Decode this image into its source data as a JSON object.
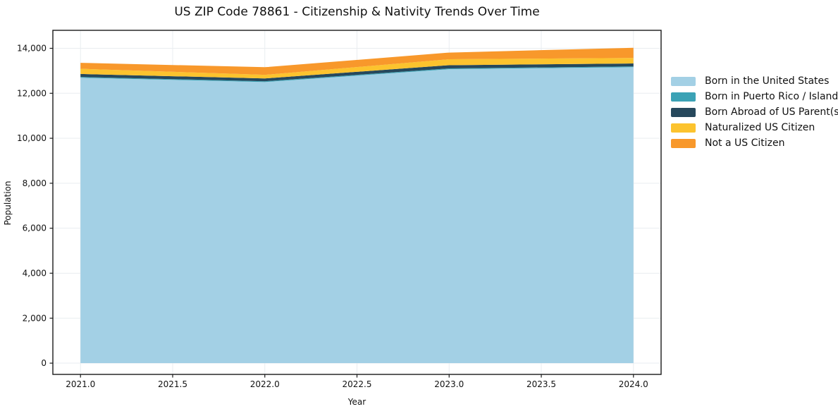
{
  "title": "US ZIP Code 78861 - Citizenship & Nativity Trends Over Time",
  "chart_data": {
    "type": "area",
    "stacked": true,
    "title": "US ZIP Code 78861 - Citizenship & Nativity Trends Over Time",
    "xlabel": "Year",
    "ylabel": "Population",
    "x": [
      2021,
      2022,
      2023,
      2024
    ],
    "series": [
      {
        "name": "Born in the United States",
        "color": "#a3d0e5",
        "values": [
          12690,
          12500,
          13070,
          13160
        ]
      },
      {
        "name": "Born in Puerto Rico / Islands",
        "color": "#3ba2b5",
        "values": [
          35,
          35,
          35,
          35
        ]
      },
      {
        "name": "Born Abroad of US Parent(s)",
        "color": "#26485c",
        "values": [
          135,
          125,
          145,
          130
        ]
      },
      {
        "name": "Naturalized US Citizen",
        "color": "#fcc32e",
        "values": [
          230,
          160,
          265,
          245
        ]
      },
      {
        "name": "Not a US Citizen",
        "color": "#f8982b",
        "values": [
          265,
          340,
          295,
          455
        ]
      }
    ],
    "stack_totals": [
      13355,
      13160,
      13810,
      14025
    ],
    "xlim": [
      2020.85,
      2024.15
    ],
    "ylim": [
      -500,
      14800
    ],
    "xticks": [
      2021.0,
      2021.5,
      2022.0,
      2022.5,
      2023.0,
      2023.5,
      2024.0
    ],
    "xtick_labels": [
      "2021.0",
      "2021.5",
      "2022.0",
      "2022.5",
      "2023.0",
      "2023.5",
      "2024.0"
    ],
    "yticks": [
      0,
      2000,
      4000,
      6000,
      8000,
      10000,
      12000,
      14000
    ],
    "ytick_labels": [
      "0",
      "2,000",
      "4,000",
      "6,000",
      "8,000",
      "10,000",
      "12,000",
      "14,000"
    ],
    "grid": true,
    "legend_position": "outside-right"
  },
  "colors": {
    "background": "#ffffff",
    "grid": "#e9edf0",
    "spine": "#1a1a1a",
    "tick": "#1a1a1a",
    "text": "#111111"
  }
}
